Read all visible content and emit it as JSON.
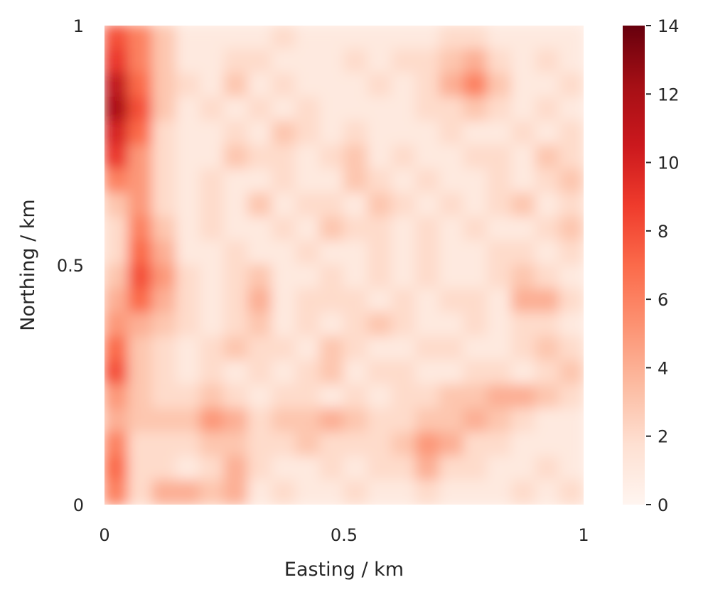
{
  "chart_data": {
    "type": "heatmap",
    "title": "",
    "xlabel": "Easting / km",
    "ylabel": "Northing / km",
    "xlim": [
      0,
      1
    ],
    "ylim": [
      0,
      1
    ],
    "x_ticks": [
      "0",
      "0.5",
      "1"
    ],
    "y_ticks": [
      "0",
      "0.5",
      "1"
    ],
    "colorbar": {
      "colormap": "Reds",
      "range": [
        0,
        14
      ],
      "ticks": [
        "0",
        "2",
        "4",
        "6",
        "8",
        "10",
        "12",
        "14"
      ],
      "colors": [
        "#fff5f0",
        "#fee0d2",
        "#fcbba1",
        "#fc9272",
        "#fb6a4a",
        "#ef3b2c",
        "#cb181d",
        "#a50f15",
        "#67000d"
      ]
    },
    "grid": false,
    "field": {
      "grid_size": [
        20,
        20
      ],
      "x": [
        0.025,
        0.075,
        0.125,
        0.175,
        0.225,
        0.275,
        0.325,
        0.375,
        0.425,
        0.475,
        0.525,
        0.575,
        0.625,
        0.675,
        0.725,
        0.775,
        0.825,
        0.875,
        0.925,
        0.975
      ],
      "y": [
        0.975,
        0.925,
        0.875,
        0.825,
        0.775,
        0.725,
        0.675,
        0.625,
        0.575,
        0.525,
        0.475,
        0.425,
        0.375,
        0.325,
        0.275,
        0.225,
        0.175,
        0.125,
        0.075,
        0.025
      ],
      "values": [
        [
          8,
          6,
          3,
          1,
          1,
          1,
          1,
          2,
          1,
          1,
          1,
          1,
          1,
          1,
          2,
          2,
          1,
          1,
          1,
          1
        ],
        [
          9,
          6,
          3,
          1,
          1,
          2,
          2,
          1,
          1,
          1,
          2,
          1,
          2,
          2,
          3,
          4,
          2,
          1,
          2,
          1
        ],
        [
          11,
          7,
          3,
          2,
          1,
          3,
          1,
          2,
          1,
          1,
          1,
          2,
          1,
          2,
          4,
          6,
          3,
          1,
          1,
          2
        ],
        [
          12,
          8,
          3,
          1,
          2,
          1,
          2,
          1,
          2,
          1,
          1,
          1,
          1,
          2,
          2,
          3,
          2,
          1,
          2,
          1
        ],
        [
          10,
          7,
          2,
          1,
          1,
          2,
          1,
          3,
          2,
          1,
          2,
          1,
          1,
          1,
          2,
          1,
          1,
          2,
          1,
          2
        ],
        [
          9,
          5,
          2,
          1,
          1,
          3,
          2,
          2,
          1,
          2,
          3,
          1,
          2,
          1,
          1,
          2,
          2,
          1,
          3,
          2
        ],
        [
          6,
          5,
          2,
          1,
          2,
          1,
          1,
          2,
          1,
          1,
          3,
          2,
          1,
          2,
          1,
          1,
          2,
          1,
          2,
          3
        ],
        [
          3,
          5,
          2,
          1,
          2,
          1,
          3,
          1,
          2,
          2,
          1,
          3,
          2,
          1,
          2,
          1,
          2,
          3,
          1,
          2
        ],
        [
          2,
          6,
          3,
          1,
          2,
          1,
          1,
          2,
          1,
          3,
          2,
          2,
          1,
          2,
          1,
          2,
          1,
          1,
          2,
          3
        ],
        [
          2,
          7,
          4,
          1,
          1,
          2,
          1,
          1,
          2,
          1,
          1,
          2,
          1,
          2,
          1,
          1,
          2,
          2,
          1,
          2
        ],
        [
          3,
          8,
          5,
          2,
          1,
          2,
          3,
          1,
          1,
          2,
          1,
          2,
          1,
          2,
          1,
          1,
          2,
          3,
          2,
          1
        ],
        [
          4,
          7,
          4,
          2,
          1,
          2,
          4,
          1,
          2,
          2,
          2,
          1,
          2,
          1,
          2,
          2,
          1,
          4,
          4,
          2
        ],
        [
          5,
          4,
          3,
          2,
          1,
          2,
          3,
          1,
          2,
          1,
          2,
          3,
          2,
          1,
          1,
          2,
          1,
          2,
          2,
          1
        ],
        [
          7,
          3,
          2,
          1,
          2,
          3,
          2,
          2,
          1,
          3,
          2,
          1,
          1,
          2,
          2,
          1,
          1,
          2,
          3,
          2
        ],
        [
          8,
          3,
          2,
          1,
          2,
          1,
          2,
          1,
          2,
          3,
          1,
          2,
          2,
          1,
          1,
          2,
          2,
          1,
          2,
          3
        ],
        [
          5,
          3,
          2,
          2,
          3,
          2,
          1,
          2,
          2,
          1,
          2,
          1,
          2,
          2,
          3,
          3,
          4,
          4,
          3,
          2
        ],
        [
          4,
          3,
          3,
          3,
          5,
          4,
          2,
          3,
          3,
          4,
          3,
          2,
          2,
          3,
          3,
          4,
          3,
          2,
          1,
          1
        ],
        [
          6,
          2,
          2,
          2,
          3,
          3,
          2,
          2,
          3,
          2,
          2,
          2,
          3,
          5,
          4,
          2,
          2,
          1,
          1,
          1
        ],
        [
          7,
          2,
          2,
          1,
          2,
          4,
          2,
          1,
          1,
          2,
          1,
          2,
          2,
          4,
          2,
          2,
          1,
          1,
          2,
          1
        ],
        [
          6,
          2,
          4,
          4,
          3,
          4,
          1,
          2,
          1,
          1,
          2,
          1,
          1,
          2,
          1,
          1,
          1,
          2,
          1,
          2
        ]
      ]
    }
  }
}
